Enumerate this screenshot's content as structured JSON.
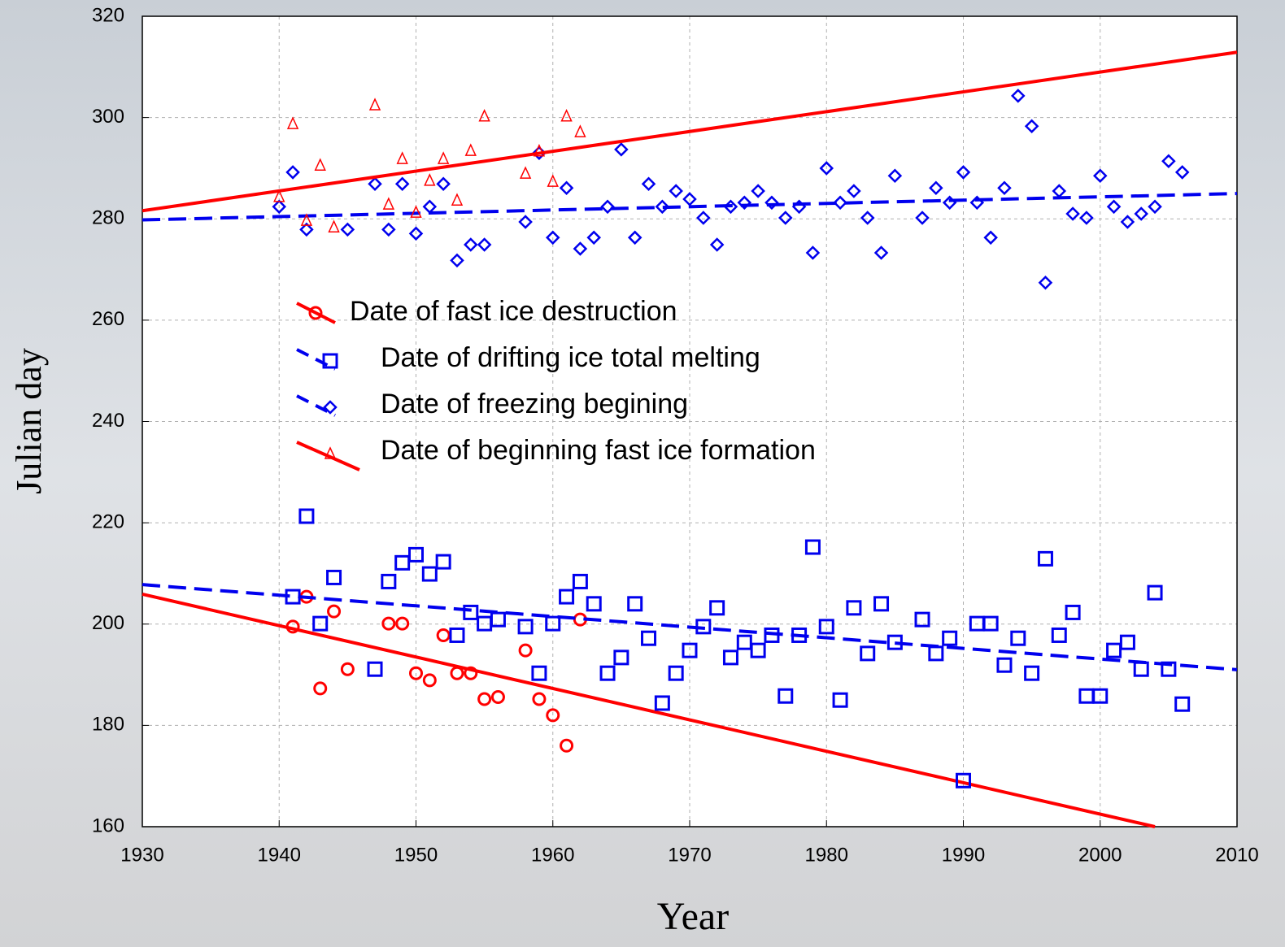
{
  "chart_data": {
    "type": "scatter",
    "x_label": "Year",
    "y_label": "Julian day",
    "xlim": [
      1930,
      2010
    ],
    "xticks": [
      1930,
      1940,
      1950,
      1960,
      1970,
      1980,
      1990,
      2000,
      2010
    ],
    "ylim": [
      160,
      320
    ],
    "yticks": [
      160,
      180,
      200,
      220,
      240,
      260,
      280,
      300,
      320
    ],
    "grid": true,
    "series": [
      {
        "name": "Date of fast ice destruction",
        "color": "#ff0000",
        "marker": "circle",
        "line": "solid",
        "x": [
          1941,
          1942,
          1943,
          1944,
          1945,
          1948,
          1949,
          1950,
          1951,
          1952,
          1953,
          1954,
          1955,
          1956,
          1958,
          1959,
          1960,
          1961,
          1962
        ],
        "values": [
          199.5,
          205.4,
          187.3,
          202.5,
          191.1,
          200.1,
          200.1,
          190.3,
          188.9,
          197.8,
          190.3,
          190.3,
          185.2,
          185.6,
          194.8,
          185.2,
          182.0,
          176.0,
          200.9
        ],
        "trend": {
          "x": [
            1930,
            2004
          ],
          "values": [
            205.9,
            160
          ]
        }
      },
      {
        "name": "Date of drifting ice total melting",
        "color": "#0000ee",
        "marker": "square",
        "line": "dashed",
        "x": [
          1941,
          1942,
          1943,
          1944,
          1947,
          1948,
          1949,
          1950,
          1951,
          1952,
          1953,
          1954,
          1955,
          1956,
          1958,
          1959,
          1960,
          1961,
          1962,
          1963,
          1964,
          1965,
          1966,
          1967,
          1968,
          1969,
          1970,
          1971,
          1972,
          1973,
          1974,
          1975,
          1976,
          1977,
          1978,
          1979,
          1980,
          1981,
          1982,
          1983,
          1984,
          1985,
          1987,
          1988,
          1989,
          1990,
          1991,
          1992,
          1993,
          1994,
          1995,
          1996,
          1997,
          1998,
          1999,
          2000,
          2001,
          2002,
          2003,
          2004,
          2005,
          2006
        ],
        "values": [
          205.4,
          221.3,
          200.1,
          209.2,
          191.1,
          208.4,
          212.1,
          213.7,
          209.9,
          212.3,
          197.8,
          202.3,
          200.1,
          200.9,
          199.5,
          190.3,
          200.1,
          205.4,
          208.4,
          204.0,
          190.3,
          193.4,
          204.0,
          197.2,
          184.4,
          190.3,
          194.8,
          199.5,
          203.2,
          193.4,
          196.4,
          194.8,
          197.8,
          185.8,
          197.8,
          215.2,
          199.5,
          185.0,
          203.2,
          194.2,
          204.0,
          196.4,
          200.9,
          194.2,
          197.2,
          169.1,
          200.1,
          200.1,
          191.9,
          197.2,
          190.3,
          212.9,
          197.8,
          202.3,
          185.8,
          185.8,
          194.8,
          196.4,
          191.1,
          206.2,
          191.1,
          184.2
        ],
        "trend": {
          "x": [
            1930,
            2010
          ],
          "values": [
            207.8,
            191.0
          ]
        }
      },
      {
        "name": "Date of freezing begining",
        "color": "#0000ee",
        "marker": "diamond",
        "line": "dashed",
        "x": [
          1940,
          1941,
          1942,
          1945,
          1947,
          1948,
          1949,
          1950,
          1951,
          1952,
          1953,
          1954,
          1955,
          1958,
          1959,
          1960,
          1961,
          1962,
          1963,
          1964,
          1965,
          1966,
          1967,
          1968,
          1969,
          1970,
          1971,
          1972,
          1973,
          1974,
          1975,
          1976,
          1977,
          1978,
          1979,
          1980,
          1981,
          1982,
          1983,
          1984,
          1985,
          1987,
          1988,
          1989,
          1990,
          1991,
          1992,
          1993,
          1994,
          1995,
          1996,
          1997,
          1998,
          1999,
          2000,
          2001,
          2002,
          2003,
          2004,
          2005,
          2006
        ],
        "values": [
          282.4,
          289.2,
          277.9,
          277.9,
          286.9,
          277.9,
          286.9,
          277.1,
          282.4,
          286.9,
          271.8,
          274.9,
          274.9,
          279.4,
          293.0,
          276.3,
          286.1,
          274.1,
          276.3,
          282.4,
          293.7,
          276.3,
          286.9,
          282.4,
          285.5,
          283.9,
          280.2,
          274.9,
          282.4,
          283.2,
          285.5,
          283.2,
          280.2,
          282.4,
          273.3,
          290.0,
          283.2,
          285.5,
          280.2,
          273.3,
          288.5,
          280.2,
          286.1,
          283.2,
          289.2,
          283.2,
          276.3,
          286.1,
          304.3,
          298.3,
          267.4,
          285.5,
          281.0,
          280.2,
          288.5,
          282.4,
          279.4,
          281.0,
          282.4,
          291.4,
          289.2
        ],
        "trend": {
          "x": [
            1930,
            2010
          ],
          "values": [
            279.8,
            285.0
          ]
        }
      },
      {
        "name": "Date of beginning fast ice formation",
        "color": "#ff0000",
        "marker": "triangle",
        "line": "solid",
        "x": [
          1940,
          1941,
          1942,
          1943,
          1944,
          1947,
          1948,
          1949,
          1950,
          1951,
          1952,
          1953,
          1954,
          1955,
          1958,
          1959,
          1960,
          1961,
          1962
        ],
        "values": [
          284.4,
          298.8,
          279.7,
          290.6,
          278.4,
          302.5,
          282.9,
          291.9,
          281.3,
          287.6,
          291.9,
          283.7,
          293.5,
          300.3,
          289.0,
          293.4,
          287.4,
          300.3,
          297.2
        ],
        "trend": {
          "x": [
            1930,
            2010
          ],
          "values": [
            281.6,
            312.9
          ]
        }
      }
    ]
  }
}
